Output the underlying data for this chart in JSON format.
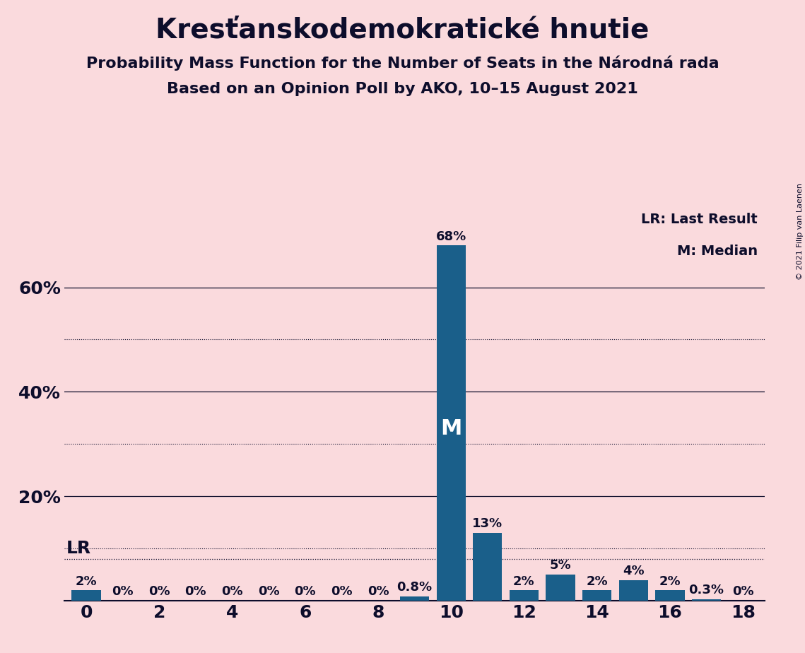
{
  "title": "Kresťanskodemokratické hnutie",
  "subtitle1": "Probability Mass Function for the Number of Seats in the Národná rada",
  "subtitle2": "Based on an Opinion Poll by AKO, 10–15 August 2021",
  "copyright": "© 2021 Filip van Laenen",
  "background_color": "#fadadd",
  "bar_color": "#1a5f8a",
  "seats": [
    0,
    1,
    2,
    3,
    4,
    5,
    6,
    7,
    8,
    9,
    10,
    11,
    12,
    13,
    14,
    15,
    16,
    17,
    18
  ],
  "probabilities": [
    2,
    0,
    0,
    0,
    0,
    0,
    0,
    0,
    0,
    0.8,
    68,
    13,
    2,
    5,
    2,
    4,
    2,
    0.3,
    0
  ],
  "labels": [
    "2%",
    "0%",
    "0%",
    "0%",
    "0%",
    "0%",
    "0%",
    "0%",
    "0%",
    "0.8%",
    "68%",
    "13%",
    "2%",
    "5%",
    "2%",
    "4%",
    "2%",
    "0.3%",
    "0%"
  ],
  "median_seat": 10,
  "last_result_value": 8.0,
  "solid_lines": [
    20,
    40,
    60
  ],
  "dotted_lines": [
    10,
    30,
    50
  ],
  "solid_line_labels": [
    "20%",
    "40%",
    "60%"
  ],
  "legend_text1": "LR: Last Result",
  "legend_text2": "M: Median",
  "lr_label": "LR",
  "median_label": "M",
  "title_fontsize": 28,
  "subtitle_fontsize": 16,
  "label_fontsize": 13,
  "axis_fontsize": 18,
  "ylim": [
    0,
    75
  ],
  "xlim": [
    -0.6,
    18.6
  ]
}
